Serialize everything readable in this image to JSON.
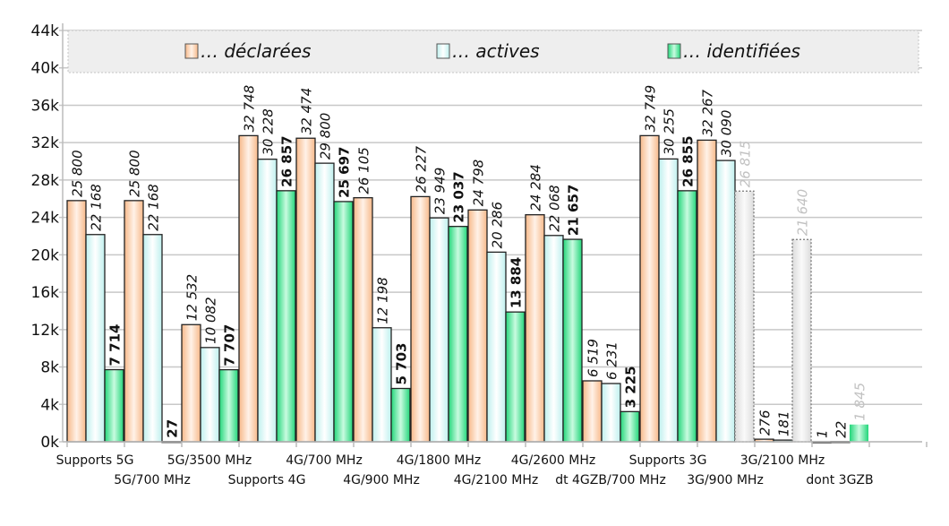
{
  "chart_data": {
    "type": "bar",
    "title": "",
    "xlabel": "",
    "ylabel": "",
    "ylim": [
      0,
      44000
    ],
    "yticks": [
      "0k",
      "4k",
      "8k",
      "12k",
      "16k",
      "20k",
      "24k",
      "28k",
      "32k",
      "36k",
      "40k",
      "44k"
    ],
    "grid": true,
    "legend_position": "top",
    "categories": [
      "Supports 5G",
      "5G/700 MHz",
      "5G/3500 MHz",
      "Supports 4G",
      "4G/700 MHz",
      "4G/900 MHz",
      "4G/1800 MHz",
      "4G/2100 MHz",
      "4G/2600 MHz",
      "dt 4GZB/700 MHz",
      "Supports 3G",
      "3G/900 MHz",
      "3G/2100 MHz",
      "dont 3GZB"
    ],
    "series": [
      {
        "name": "… déclarées",
        "color": "#f9c9a0",
        "values": [
          25800,
          25800,
          12532,
          32748,
          32474,
          26105,
          26227,
          24798,
          24284,
          6519,
          32749,
          32267,
          276,
          1
        ],
        "labels": [
          "25 800",
          "25 800",
          "12 532",
          "32 748",
          "32 474",
          "26 105",
          "26 227",
          "24 798",
          "24 284",
          "6 519",
          "32 749",
          "32 267",
          "276",
          "1"
        ],
        "styles": [
          "n",
          "n",
          "n",
          "n",
          "n",
          "n",
          "n",
          "n",
          "n",
          "n",
          "n",
          "n",
          "n",
          "n"
        ]
      },
      {
        "name": "… actives",
        "color": "#d2f7f5",
        "values": [
          22168,
          22168,
          10082,
          30228,
          29800,
          12198,
          23949,
          20286,
          22068,
          6231,
          30255,
          30090,
          181,
          22
        ],
        "labels": [
          "22 168",
          "22 168",
          "10 082",
          "30 228",
          "29 800",
          "12 198",
          "23 949",
          "20 286",
          "22 068",
          "6 231",
          "30 255",
          "30 090",
          "181",
          "22"
        ],
        "styles": [
          "n",
          "n",
          "n",
          "n",
          "n",
          "n",
          "n",
          "n",
          "n",
          "n",
          "n",
          "n",
          "n",
          "n"
        ]
      },
      {
        "name": "… identifiées",
        "color": "#3ee08e",
        "values": [
          7714,
          27,
          7707,
          26857,
          25697,
          5703,
          23037,
          13884,
          21657,
          3225,
          26855,
          26815,
          21640,
          1845
        ],
        "labels": [
          "7 714",
          "27",
          "7 707",
          "26 857",
          "25 697",
          "5 703",
          "23 037",
          "13 884",
          "21 657",
          "3 225",
          "26 855",
          "26 815",
          "21 640",
          "1 845"
        ],
        "styles": [
          "n",
          "n",
          "n",
          "n",
          "n",
          "n",
          "n",
          "n",
          "n",
          "n",
          "n",
          "ghost",
          "ghost",
          "faded"
        ]
      }
    ]
  }
}
